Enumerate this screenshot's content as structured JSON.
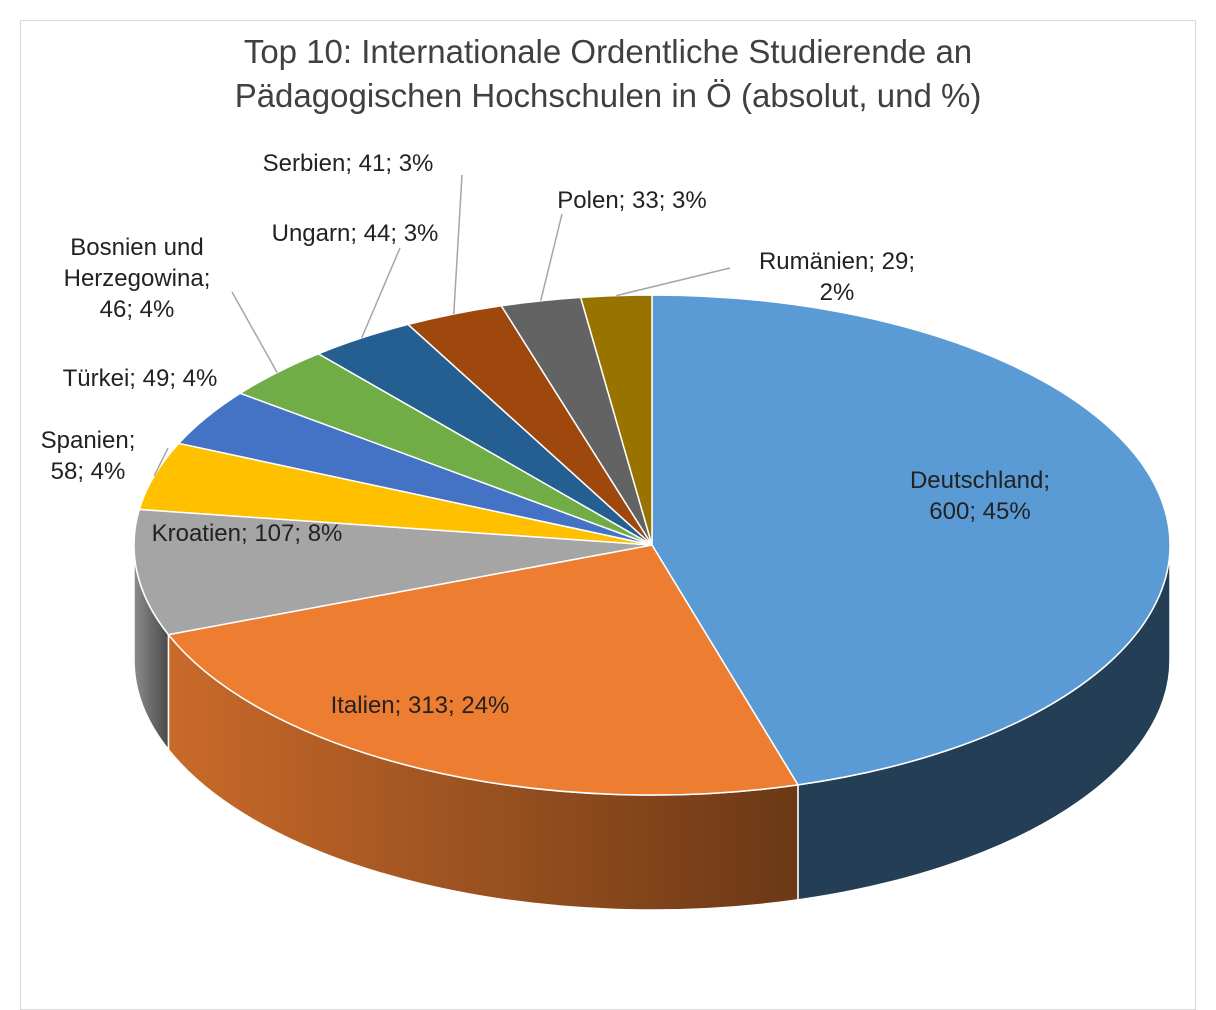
{
  "chart_data": {
    "type": "pie3d",
    "title": "Top 10: Internationale Ordentliche Studierende an Pädagogischen Hochschulen in Ö (absolut, und %)",
    "values": [
      600,
      313,
      107,
      58,
      49,
      46,
      44,
      41,
      33,
      29
    ],
    "value_labels": [
      "Deutschland; 600; 45%",
      "Italien; 313; 24%",
      "Kroatien; 107; 8%",
      "Spanien; 58; 4%",
      "Türkei; 49; 4%",
      "Bosnien und Herzegowina; 46; 4%",
      "Ungarn; 44; 3%",
      "Serbien; 41; 3%",
      "Polen; 33; 3%",
      "Rumänien; 29; 2%"
    ],
    "colors": [
      "#5b9bd5",
      "#ed7d31",
      "#a5a5a5",
      "#ffc000",
      "#4472c4",
      "#70ad47",
      "#255e91",
      "#9e480e",
      "#636363",
      "#997300"
    ]
  }
}
